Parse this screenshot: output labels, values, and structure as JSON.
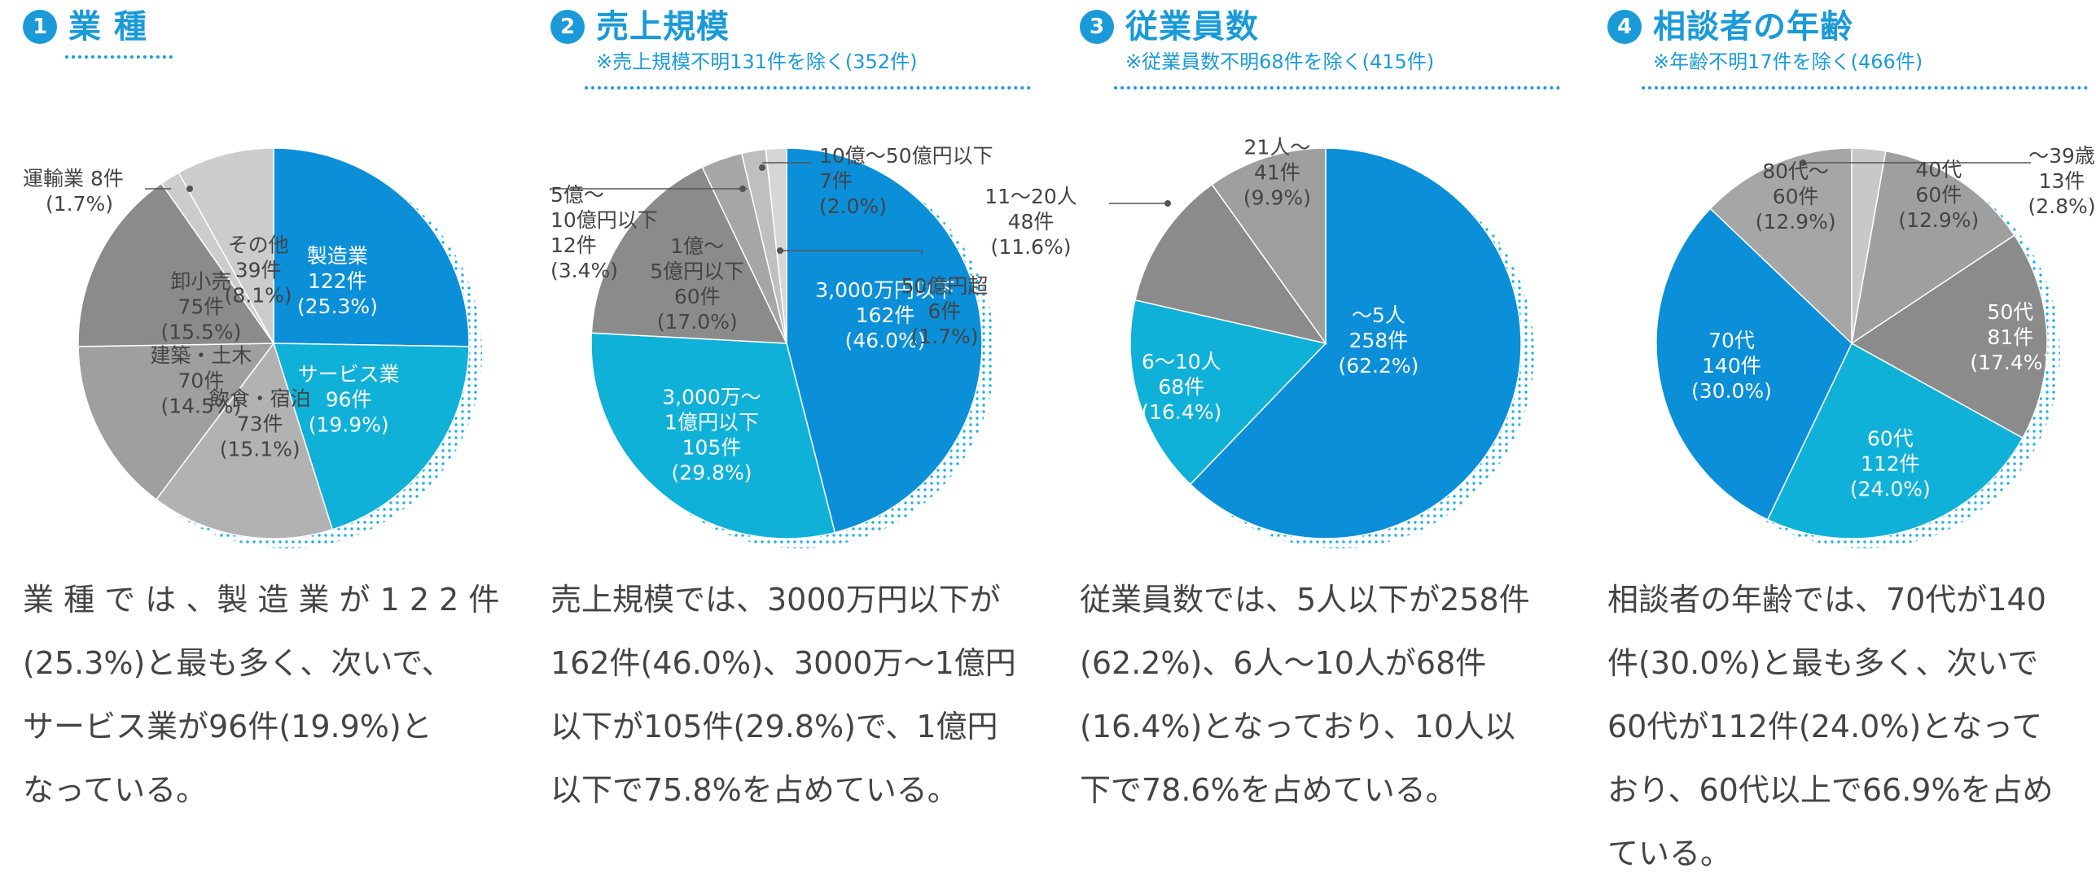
{
  "colors": {
    "accent": "#1a9ad9",
    "blue": "#0b8fd9",
    "cyan": "#10b1d8",
    "dark_gray": "#8b8b8b",
    "mid_gray": "#9f9f9f",
    "light_gray": "#b2b2b2",
    "pale_gray": "#cccccc",
    "text": "#444444",
    "leader": "#555555"
  },
  "panels": [
    {
      "number": "1",
      "title": "業 種",
      "note": "",
      "description": [
        "業 種 で は 、製 造 業 が 1 2 2 件",
        "(25.3%)と最も多く、次いで、",
        "サービス業が96件(19.9%)と",
        "なっている。"
      ]
    },
    {
      "number": "2",
      "title": "売上規模",
      "note": "※売上規模不明131件を除く(352件)",
      "description": [
        "売上規模では、3000万円以下が",
        "162件(46.0%)、3000万～1億円",
        "以下が105件(29.8%)で、1億円",
        "以下で75.8%を占めている。"
      ]
    },
    {
      "number": "3",
      "title": "従業員数",
      "note": "※従業員数不明68件を除く(415件)",
      "description": [
        "従業員数では、5人以下が258件",
        "(62.2%)、6人～10人が68件",
        "(16.4%)となっており、10人以",
        "下で78.6%を占めている。"
      ]
    },
    {
      "number": "4",
      "title": "相談者の年齢",
      "note": "※年齢不明17件を除く(466件)",
      "description": [
        "相談者の年齢では、70代が140",
        "件(30.0%)と最も多く、次いで",
        "60代が112件(24.0%)となって",
        "おり、60代以上で66.9%を占め",
        "ている。"
      ]
    }
  ],
  "chart_data": [
    {
      "type": "pie",
      "title": "業 種",
      "categories": [
        "製造業",
        "サービス業",
        "飲食・宿泊",
        "建築・土木",
        "卸小売",
        "運輸業",
        "その他"
      ],
      "values": [
        122,
        96,
        73,
        70,
        75,
        8,
        39
      ],
      "percents": [
        "25.3%",
        "19.9%",
        "15.1%",
        "14.5%",
        "15.5%",
        "1.7%",
        "8.1%"
      ],
      "counts": [
        "122件",
        "96件",
        "73件",
        "70件",
        "75件",
        "8件",
        "39件"
      ],
      "colors": [
        "#0b8fd9",
        "#10b1d8",
        "#b2b2b2",
        "#9f9f9f",
        "#8b8b8b",
        "#cccccc",
        "#cccccc"
      ]
    },
    {
      "type": "pie",
      "title": "売上規模",
      "categories": [
        "3,000万円以下",
        "3,000万～1億円以下",
        "1億～5億円以下",
        "5億～10億円以下",
        "10億～50億円以下",
        "50億円超"
      ],
      "values": [
        162,
        105,
        60,
        12,
        7,
        6
      ],
      "percents": [
        "46.0%",
        "29.8%",
        "17.0%",
        "3.4%",
        "2.0%",
        "1.7%"
      ],
      "counts": [
        "162件",
        "105件",
        "60件",
        "12件",
        "7件",
        "6件"
      ],
      "colors": [
        "#0b8fd9",
        "#10b1d8",
        "#8b8b8b",
        "#a6a6a6",
        "#bfbfbf",
        "#d6d6d6"
      ]
    },
    {
      "type": "pie",
      "title": "従業員数",
      "categories": [
        "～5人",
        "6～10人",
        "11～20人",
        "21人～"
      ],
      "values": [
        258,
        68,
        48,
        41
      ],
      "percents": [
        "62.2%",
        "16.4%",
        "11.6%",
        "9.9%"
      ],
      "counts": [
        "258件",
        "68件",
        "48件",
        "41件"
      ],
      "colors": [
        "#0b8fd9",
        "#10b1d8",
        "#8b8b8b",
        "#9f9f9f"
      ]
    },
    {
      "type": "pie",
      "title": "相談者の年齢",
      "categories": [
        "～39歳",
        "40代",
        "50代",
        "60代",
        "70代",
        "80代～"
      ],
      "values": [
        13,
        60,
        81,
        112,
        140,
        60
      ],
      "percents": [
        "2.8%",
        "12.9%",
        "17.4%",
        "24.0%",
        "30.0%",
        "12.9%"
      ],
      "counts": [
        "13件",
        "60件",
        "81件",
        "112件",
        "140件",
        "60件"
      ],
      "colors": [
        "#c8c8c8",
        "#9f9f9f",
        "#8b8b8b",
        "#10b1d8",
        "#0b8fd9",
        "#a6a6a6"
      ]
    }
  ]
}
